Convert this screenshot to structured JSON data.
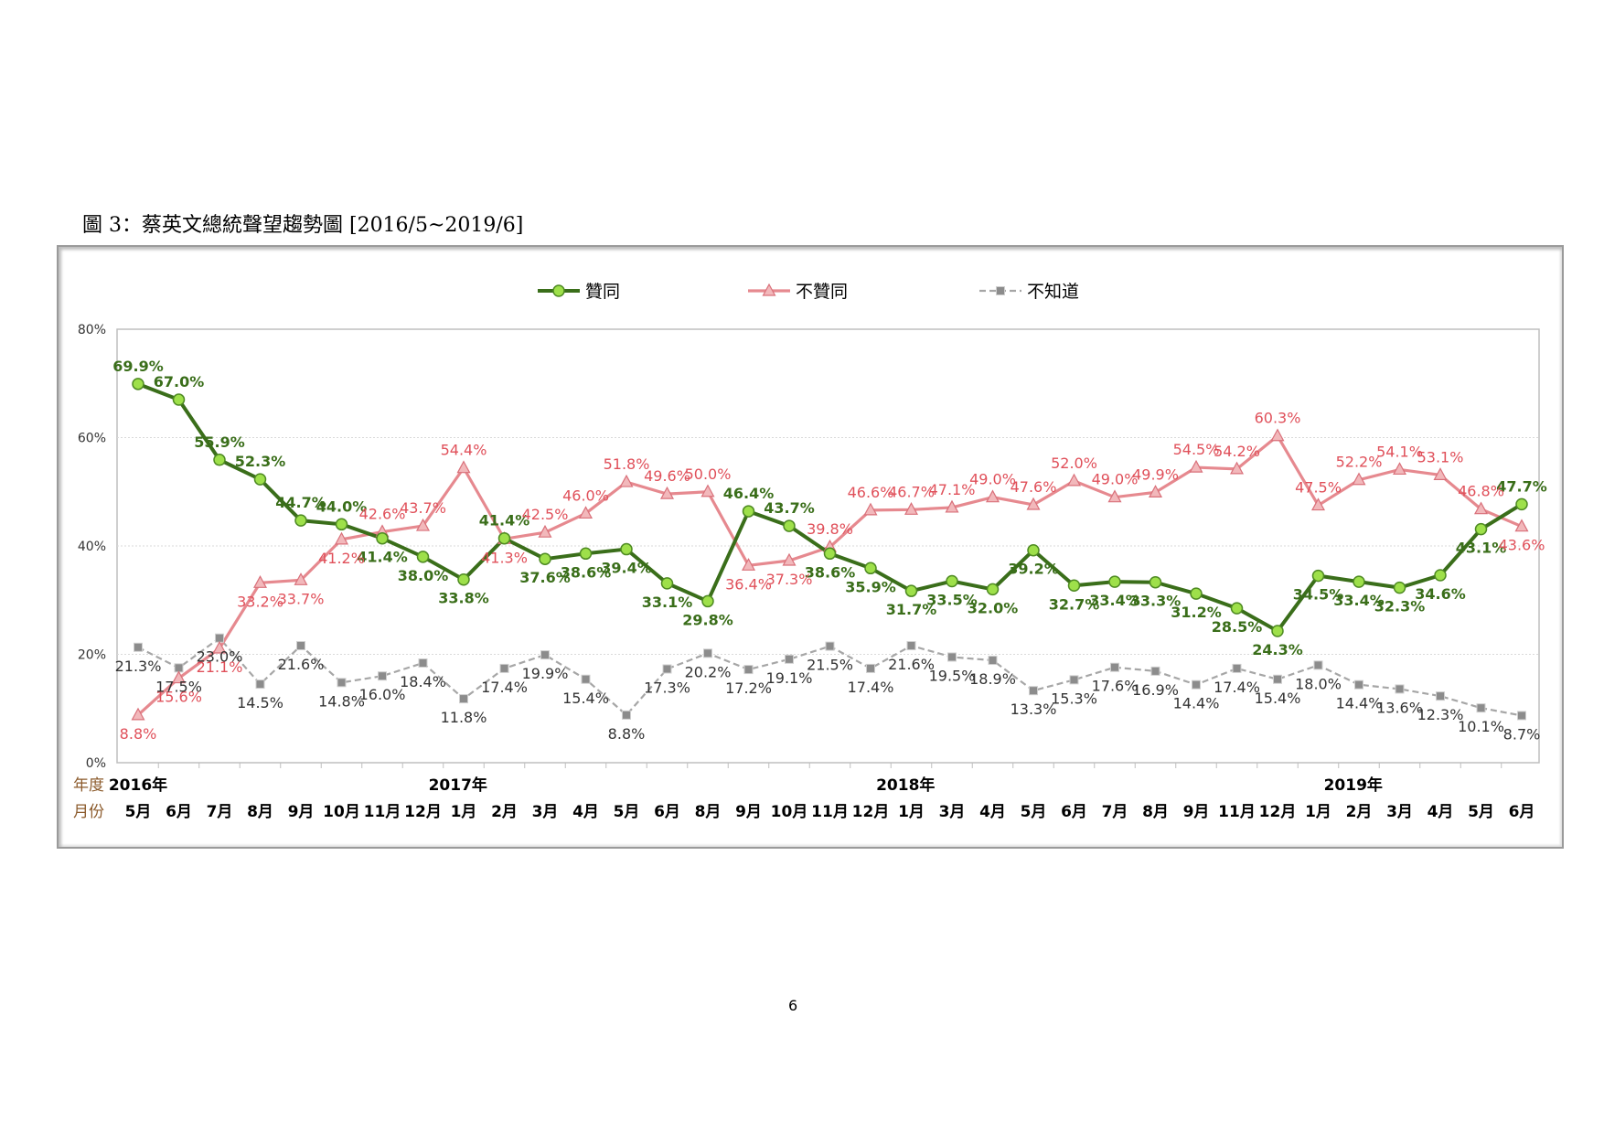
{
  "figure_title": "圖 3：蔡英文總統聲望趨勢圖 [2016/5~2019/6]",
  "page_number": "6",
  "colors": {
    "approve": "#3a6e1a",
    "approve_marker": "#9ee04a",
    "disapprove": "#e6898f",
    "disapprove_label": "#e0505a",
    "unknown": "#a6a6a6",
    "year_label": "#8b5a2b"
  },
  "chart_data": {
    "type": "line",
    "ylim": [
      0,
      80
    ],
    "yticks": [
      "0%",
      "20%",
      "40%",
      "60%",
      "80%"
    ],
    "grid": true,
    "legend_position": "top",
    "row_labels": {
      "year": "年度",
      "month": "月份"
    },
    "years": [
      {
        "label": "2016年",
        "index": 0
      },
      {
        "label": "2017年",
        "index": 8
      },
      {
        "label": "2018年",
        "index": 19
      },
      {
        "label": "2019年",
        "index": 30
      }
    ],
    "categories": [
      "5月",
      "6月",
      "7月",
      "8月",
      "9月",
      "10月",
      "11月",
      "12月",
      "1月",
      "2月",
      "3月",
      "4月",
      "5月",
      "6月",
      "8月",
      "9月",
      "10月",
      "11月",
      "12月",
      "1月",
      "3月",
      "4月",
      "5月",
      "6月",
      "7月",
      "8月",
      "9月",
      "11月",
      "12月",
      "1月",
      "2月",
      "3月",
      "4月",
      "5月",
      "6月"
    ],
    "series": [
      {
        "name": "贊同",
        "values": [
          69.9,
          67.0,
          55.9,
          52.3,
          44.7,
          44.0,
          41.4,
          38.0,
          33.8,
          41.4,
          37.6,
          38.6,
          39.4,
          33.1,
          29.8,
          46.4,
          43.7,
          38.6,
          35.9,
          31.7,
          33.5,
          32.0,
          39.2,
          32.7,
          33.4,
          33.3,
          31.2,
          28.5,
          24.3,
          34.5,
          33.4,
          32.3,
          34.6,
          43.1,
          47.7
        ]
      },
      {
        "name": "不贊同",
        "values": [
          8.8,
          15.6,
          21.1,
          33.2,
          33.7,
          41.2,
          42.6,
          43.7,
          54.4,
          41.3,
          42.5,
          46.0,
          51.8,
          49.6,
          50.0,
          36.4,
          37.3,
          39.8,
          46.6,
          46.7,
          47.1,
          49.0,
          47.6,
          52.0,
          49.0,
          49.9,
          54.5,
          54.2,
          60.3,
          47.5,
          52.2,
          54.1,
          53.1,
          46.8,
          43.6
        ]
      },
      {
        "name": "不知道",
        "values": [
          21.3,
          17.5,
          23.0,
          14.5,
          21.6,
          14.8,
          16.0,
          18.4,
          11.8,
          17.4,
          19.9,
          15.4,
          8.8,
          17.3,
          20.2,
          17.2,
          19.1,
          21.5,
          17.4,
          21.6,
          19.5,
          18.9,
          13.3,
          15.3,
          17.6,
          16.9,
          14.4,
          17.4,
          15.4,
          18.0,
          14.4,
          13.6,
          12.3,
          10.1,
          8.7
        ]
      }
    ]
  }
}
